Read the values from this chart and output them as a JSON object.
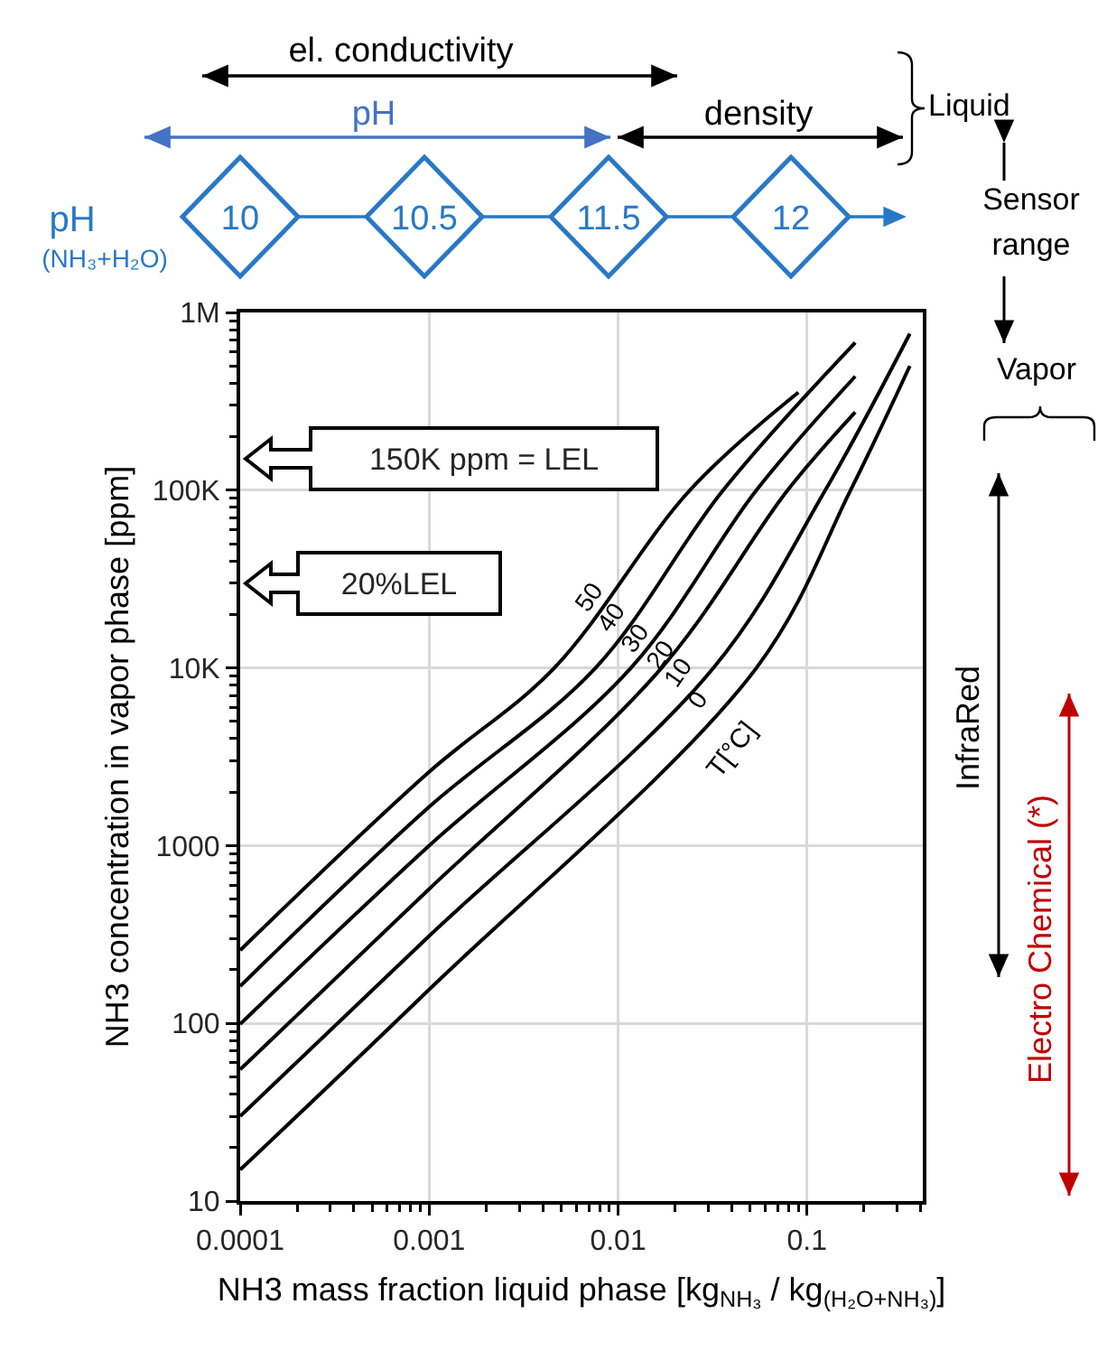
{
  "chart_data": {
    "type": "line",
    "xlabel": "NH3 mass fraction liquid phase [kg$_{NH₃}$ / kg$_{(H₂O+NH₃)}$]",
    "ylabel": "NH3 concentration in vapor phase [ppm]",
    "log": "xy",
    "grid": true,
    "marker": "none",
    "line_style": "solid",
    "xlim": [
      0.0001,
      0.41
    ],
    "ylim": [
      10,
      1000000
    ],
    "xticks": [
      0.0001,
      0.001,
      0.01,
      0.1
    ],
    "yticks": [
      10,
      100,
      1000,
      {
        "value": 10000,
        "label": "10K"
      },
      {
        "value": 100000,
        "label": "100K"
      },
      {
        "value": 1000000,
        "label": "1M"
      }
    ],
    "series": [
      {
        "color": "#000000",
        "x": [
          0.0001,
          0.001,
          0.0046,
          0.024,
          0.09
        ],
        "values": [
          258,
          2600,
          10000,
          100000,
          355000
        ]
      },
      {
        "color": "#000000",
        "x": [
          0.0001,
          0.001,
          0.0076,
          0.036,
          0.18
        ],
        "values": [
          162,
          1650,
          10000,
          100000,
          676000
        ]
      },
      {
        "color": "#000000",
        "x": [
          0.0001,
          0.001,
          0.0117,
          0.054,
          0.18
        ],
        "values": [
          99,
          1000,
          10000,
          100000,
          437000
        ]
      },
      {
        "color": "#000000",
        "x": [
          0.0001,
          0.001,
          0.017,
          0.079,
          0.18
        ],
        "values": [
          55,
          570,
          10000,
          100000,
          275000
        ]
      },
      {
        "color": "#000000",
        "x": [
          0.0001,
          0.001,
          0.032,
          0.125,
          0.35
        ],
        "values": [
          30,
          310,
          10000,
          100000,
          760000
        ]
      },
      {
        "color": "#000000",
        "x": [
          0.0001,
          0.001,
          0.054,
          0.17,
          0.35
        ],
        "values": [
          15,
          155,
          10000,
          100000,
          500000
        ]
      }
    ],
    "annotations": [
      "el. conductivity",
      "pH",
      "density",
      "Liquid",
      "Sensor range",
      "Vapor",
      "pH",
      "(NH₃+H₂O)",
      "10",
      "10.5",
      "11.5",
      "12",
      "150K ppm = LEL",
      "20%LEL",
      "InfraRed",
      "Electro Chemical (*)",
      {
        "text": "50",
        "x": 0.008,
        "y": 22000
      },
      {
        "text": "40",
        "x": 0.0105,
        "y": 17000
      },
      {
        "text": "30",
        "x": 0.0139,
        "y": 13000
      },
      {
        "text": "20",
        "x": 0.019,
        "y": 10500
      },
      {
        "text": "10",
        "x": 0.0235,
        "y": 8300
      },
      {
        "text": "0",
        "x": 0.03,
        "y": 5800
      },
      "T[°C]"
    ]
  }
}
